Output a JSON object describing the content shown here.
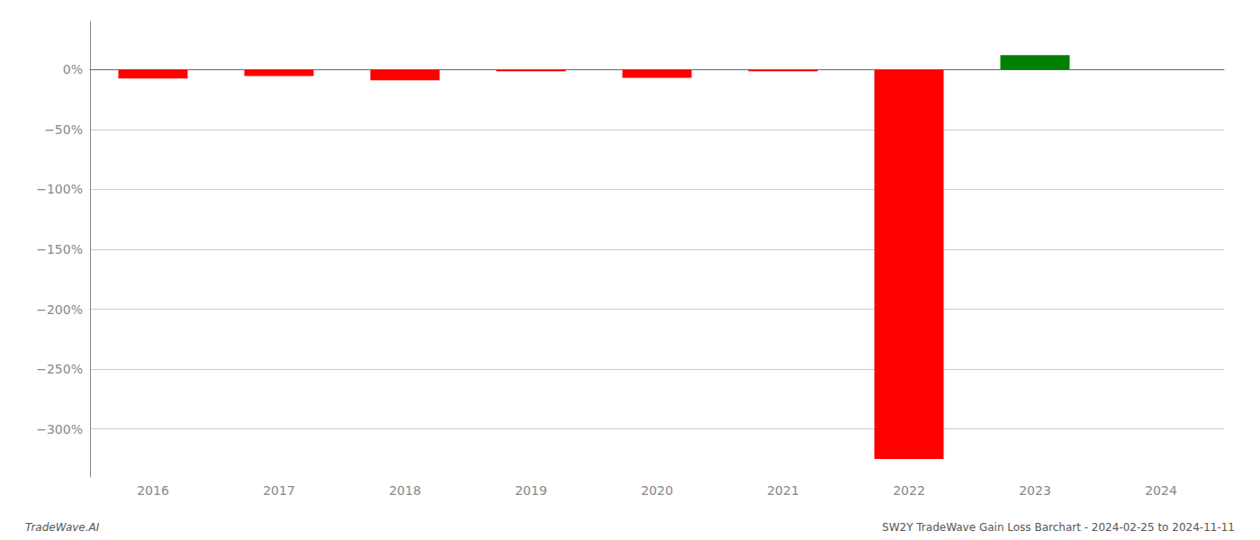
{
  "chart_data": {
    "type": "bar",
    "categories": [
      "2016",
      "2017",
      "2018",
      "2019",
      "2020",
      "2021",
      "2022",
      "2023",
      "2024"
    ],
    "values": [
      -7.5,
      -5.5,
      -9.0,
      -1.5,
      -7.0,
      -1.5,
      -325.0,
      12.0,
      0
    ],
    "colors": [
      "#ff0000",
      "#ff0000",
      "#ff0000",
      "#ff0000",
      "#ff0000",
      "#ff0000",
      "#ff0000",
      "#008000",
      "#ffffff"
    ],
    "ylim": [
      -340,
      40
    ],
    "yticks": [
      {
        "value": 0,
        "label": "0%"
      },
      {
        "value": -50,
        "label": "−50%"
      },
      {
        "value": -100,
        "label": "−100%"
      },
      {
        "value": -150,
        "label": "−150%"
      },
      {
        "value": -200,
        "label": "−200%"
      },
      {
        "value": -250,
        "label": "−250%"
      },
      {
        "value": -300,
        "label": "−300%"
      }
    ],
    "grid": true,
    "annotations": [
      "TradeWave.AI",
      "SW2Y TradeWave Gain Loss Barchart - 2024-02-25 to 2024-11-11"
    ]
  }
}
